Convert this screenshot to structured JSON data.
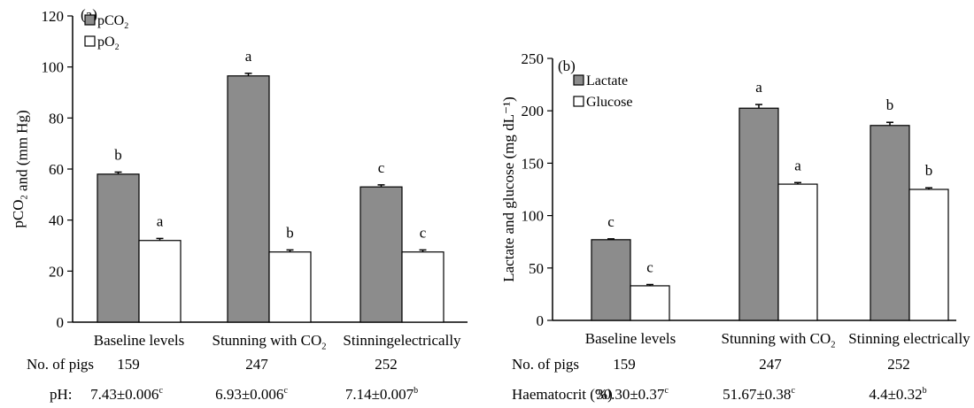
{
  "colors": {
    "grey_bar": "#8c8c8c",
    "white_bar": "#ffffff",
    "axis": "#000000"
  },
  "chart_data": [
    {
      "type": "bar",
      "panel_label": "(a)",
      "ylabel": "pCO2 and (mm Hg)",
      "ylim": [
        0,
        120
      ],
      "yticks": [
        0,
        20,
        40,
        60,
        80,
        100,
        120
      ],
      "categories": [
        "Baseline levels",
        "Stunning with CO2",
        "Stinningelectrically"
      ],
      "legend_position": "top-left",
      "series": [
        {
          "name": "pCO2",
          "values": [
            58,
            96.5,
            53
          ],
          "errors": [
            0.8,
            1.0,
            0.8
          ],
          "letters": [
            "b",
            "a",
            "c"
          ]
        },
        {
          "name": "pO2",
          "values": [
            32,
            27.5,
            27.5
          ],
          "errors": [
            0.8,
            0.8,
            0.8
          ],
          "letters": [
            "a",
            "b",
            "c"
          ]
        }
      ],
      "footer": {
        "row1_label": "No. of pigs",
        "row1_values": [
          "159",
          "247",
          "252"
        ],
        "row2_label": "pH:",
        "row2_values": [
          "7.43±0.006",
          "6.93±0.006",
          "7.14±0.007"
        ],
        "row2_superscripts": [
          "c",
          "c",
          "b"
        ]
      }
    },
    {
      "type": "bar",
      "panel_label": "(b)",
      "ylabel": "Lactate and glucose (mg dL⁻¹)",
      "ylim": [
        0,
        250
      ],
      "yticks": [
        0,
        50,
        100,
        150,
        200,
        250
      ],
      "categories": [
        "Baseline levels",
        "Stunning with CO2",
        "Stinning electrically"
      ],
      "legend_position": "top-left",
      "series": [
        {
          "name": "Lactate",
          "values": [
            77,
            202.5,
            186
          ],
          "errors": [
            0.8,
            3.5,
            3.0
          ],
          "letters": [
            "c",
            "a",
            "b"
          ]
        },
        {
          "name": "Glucose",
          "values": [
            33,
            130,
            125
          ],
          "errors": [
            1.2,
            1.5,
            1.5
          ],
          "letters": [
            "c",
            "a",
            "b"
          ]
        }
      ],
      "footer": {
        "row1_label": "No. of pigs",
        "row1_values": [
          "159",
          "247",
          "252"
        ],
        "row2_label": "Haematocrit (%)",
        "row2_values": [
          "30.30±0.37",
          "51.67±0.38",
          "4.4±0.32"
        ],
        "row2_superscripts": [
          "c",
          "c",
          "b"
        ]
      }
    }
  ]
}
